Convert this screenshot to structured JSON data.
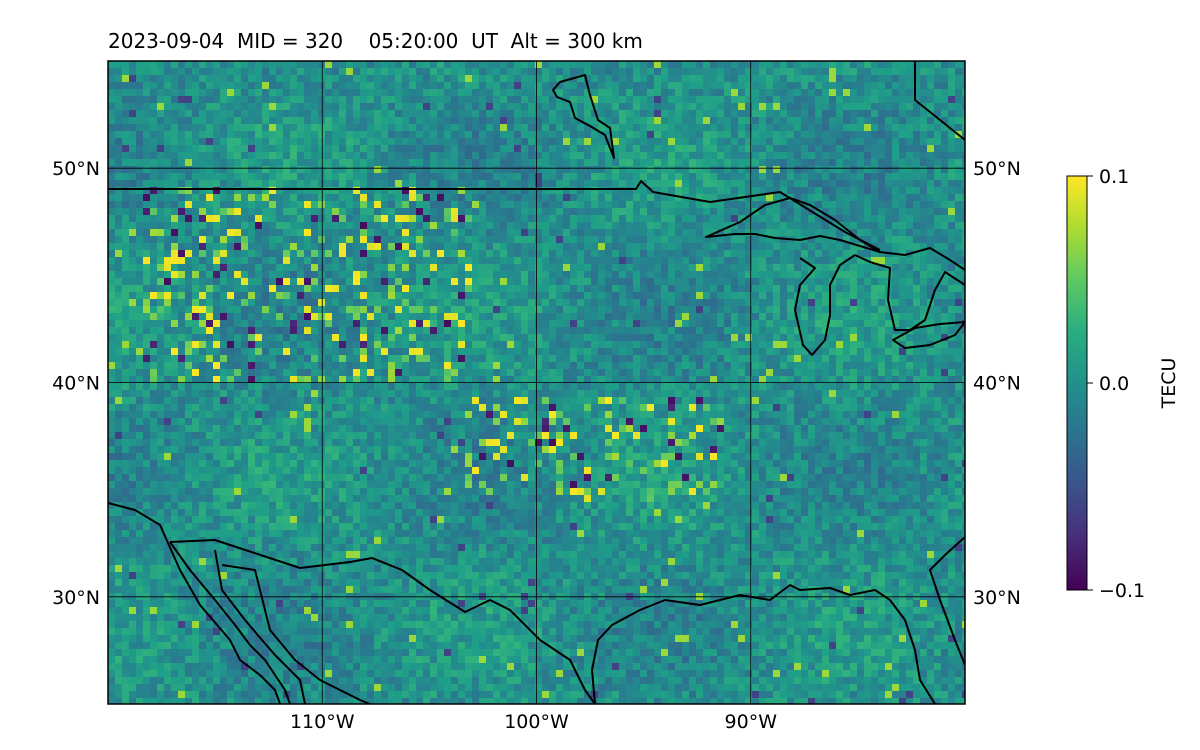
{
  "title": "2023-09-04  MID = 320    05:20:00  UT  Alt = 300 km",
  "map": {
    "lon_range": [
      -120,
      -80
    ],
    "lat_range": [
      25,
      55
    ],
    "lat_ticks": [
      {
        "value": 30,
        "label": "30°N"
      },
      {
        "value": 40,
        "label": "40°N"
      },
      {
        "value": 50,
        "label": "50°N"
      }
    ],
    "lon_ticks": [
      {
        "value": -110,
        "label": "110°W"
      },
      {
        "value": -100,
        "label": "100°W"
      },
      {
        "value": -90,
        "label": "90°W"
      }
    ],
    "colormap": "viridis",
    "grid": true
  },
  "colorbar": {
    "label": "TECU",
    "vmin": -0.1,
    "vmax": 0.1,
    "ticks": [
      {
        "value": 0.1,
        "label": "0.1"
      },
      {
        "value": 0.0,
        "label": "0.0"
      },
      {
        "value": -0.1,
        "label": "−0.1"
      }
    ]
  },
  "colors": {
    "viridis_low": "#440154",
    "viridis_mid": "#21918c",
    "viridis_high": "#fde725"
  }
}
